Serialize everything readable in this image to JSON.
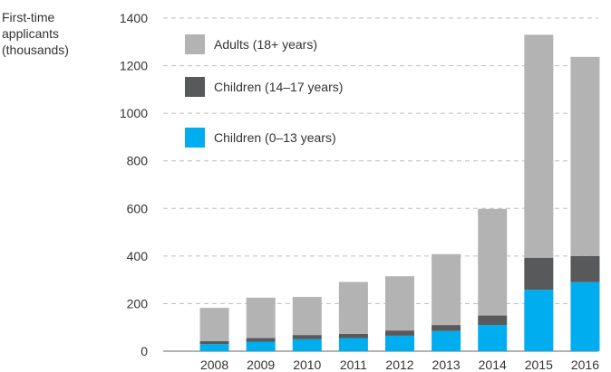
{
  "chart_data": {
    "type": "bar",
    "stacked": true,
    "ylabel": [
      "First-time",
      "applicants",
      "(thousands)"
    ],
    "categories": [
      "2008",
      "2009",
      "2010",
      "2011",
      "2012",
      "2013",
      "2014",
      "2015",
      "2016"
    ],
    "y_ticks": [
      "0",
      "200",
      "400",
      "600",
      "800",
      "1000",
      "1200",
      "1400"
    ],
    "ylim": [
      0,
      1400
    ],
    "grid": true,
    "legend_placement": "top-left",
    "series": [
      {
        "name": "Children (0–13 years)",
        "color": "#00aeef",
        "values": [
          30,
          40,
          50,
          55,
          65,
          85,
          110,
          258,
          290
        ]
      },
      {
        "name": "Children (14–17 years)",
        "color": "#58595b",
        "values": [
          12,
          15,
          18,
          18,
          22,
          25,
          40,
          135,
          110
        ]
      },
      {
        "name": "Adults (18+ years)",
        "color": "#b3b3b3",
        "values": [
          140,
          170,
          160,
          218,
          228,
          298,
          448,
          937,
          837
        ]
      }
    ],
    "legend_order": [
      2,
      1,
      0
    ]
  }
}
